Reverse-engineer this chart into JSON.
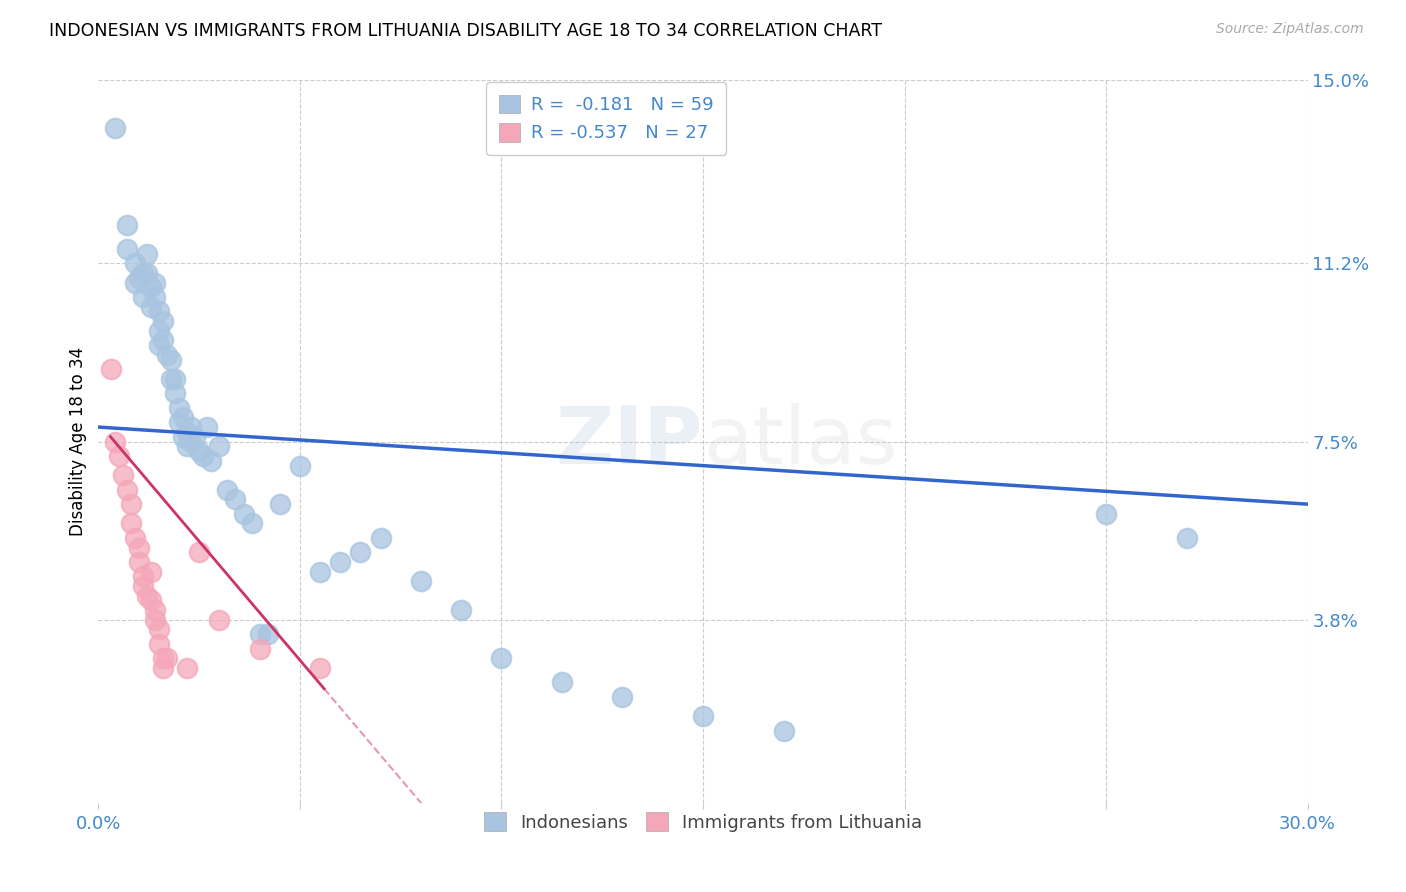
{
  "title": "INDONESIAN VS IMMIGRANTS FROM LITHUANIA DISABILITY AGE 18 TO 34 CORRELATION CHART",
  "source": "Source: ZipAtlas.com",
  "ylabel": "Disability Age 18 to 34",
  "xlim": [
    0.0,
    0.3
  ],
  "ylim": [
    0.0,
    0.15
  ],
  "legend_r1": "R =  -0.181",
  "legend_n1": "N = 59",
  "legend_r2": "R = -0.537",
  "legend_n2": "N = 27",
  "indonesian_color": "#a8c4e0",
  "lithuanian_color": "#f4a7b9",
  "trendline_blue": "#3366cc",
  "trendline_pink": "#cc3366",
  "watermark": "ZIPatlas",
  "indonesian_x": [
    0.004,
    0.007,
    0.007,
    0.009,
    0.009,
    0.01,
    0.011,
    0.011,
    0.012,
    0.012,
    0.013,
    0.013,
    0.014,
    0.014,
    0.015,
    0.015,
    0.015,
    0.016,
    0.016,
    0.017,
    0.018,
    0.018,
    0.019,
    0.019,
    0.02,
    0.02,
    0.021,
    0.021,
    0.022,
    0.022,
    0.023,
    0.023,
    0.024,
    0.025,
    0.026,
    0.027,
    0.028,
    0.03,
    0.032,
    0.034,
    0.036,
    0.038,
    0.04,
    0.042,
    0.045,
    0.05,
    0.055,
    0.06,
    0.065,
    0.07,
    0.08,
    0.09,
    0.1,
    0.115,
    0.13,
    0.15,
    0.17,
    0.25,
    0.27
  ],
  "indonesian_y": [
    0.14,
    0.12,
    0.115,
    0.112,
    0.108,
    0.109,
    0.11,
    0.105,
    0.114,
    0.11,
    0.107,
    0.103,
    0.108,
    0.105,
    0.102,
    0.098,
    0.095,
    0.1,
    0.096,
    0.093,
    0.088,
    0.092,
    0.085,
    0.088,
    0.082,
    0.079,
    0.076,
    0.08,
    0.077,
    0.074,
    0.078,
    0.075,
    0.076,
    0.073,
    0.072,
    0.078,
    0.071,
    0.074,
    0.065,
    0.063,
    0.06,
    0.058,
    0.035,
    0.035,
    0.062,
    0.07,
    0.048,
    0.05,
    0.052,
    0.055,
    0.046,
    0.04,
    0.03,
    0.025,
    0.022,
    0.018,
    0.015,
    0.06,
    0.055
  ],
  "lithuanian_x": [
    0.003,
    0.004,
    0.005,
    0.006,
    0.007,
    0.008,
    0.008,
    0.009,
    0.01,
    0.01,
    0.011,
    0.011,
    0.012,
    0.013,
    0.013,
    0.014,
    0.014,
    0.015,
    0.015,
    0.016,
    0.016,
    0.017,
    0.022,
    0.025,
    0.03,
    0.04,
    0.055
  ],
  "lithuanian_y": [
    0.09,
    0.075,
    0.072,
    0.068,
    0.065,
    0.062,
    0.058,
    0.055,
    0.053,
    0.05,
    0.047,
    0.045,
    0.043,
    0.048,
    0.042,
    0.04,
    0.038,
    0.036,
    0.033,
    0.03,
    0.028,
    0.03,
    0.028,
    0.052,
    0.038,
    0.032,
    0.028
  ],
  "trendline_blue_x0": 0.0,
  "trendline_blue_y0": 0.078,
  "trendline_blue_x1": 0.3,
  "trendline_blue_y1": 0.062,
  "trendline_pink_x0": 0.003,
  "trendline_pink_y0": 0.076,
  "trendline_pink_x1": 0.08,
  "trendline_pink_y1": 0.0
}
